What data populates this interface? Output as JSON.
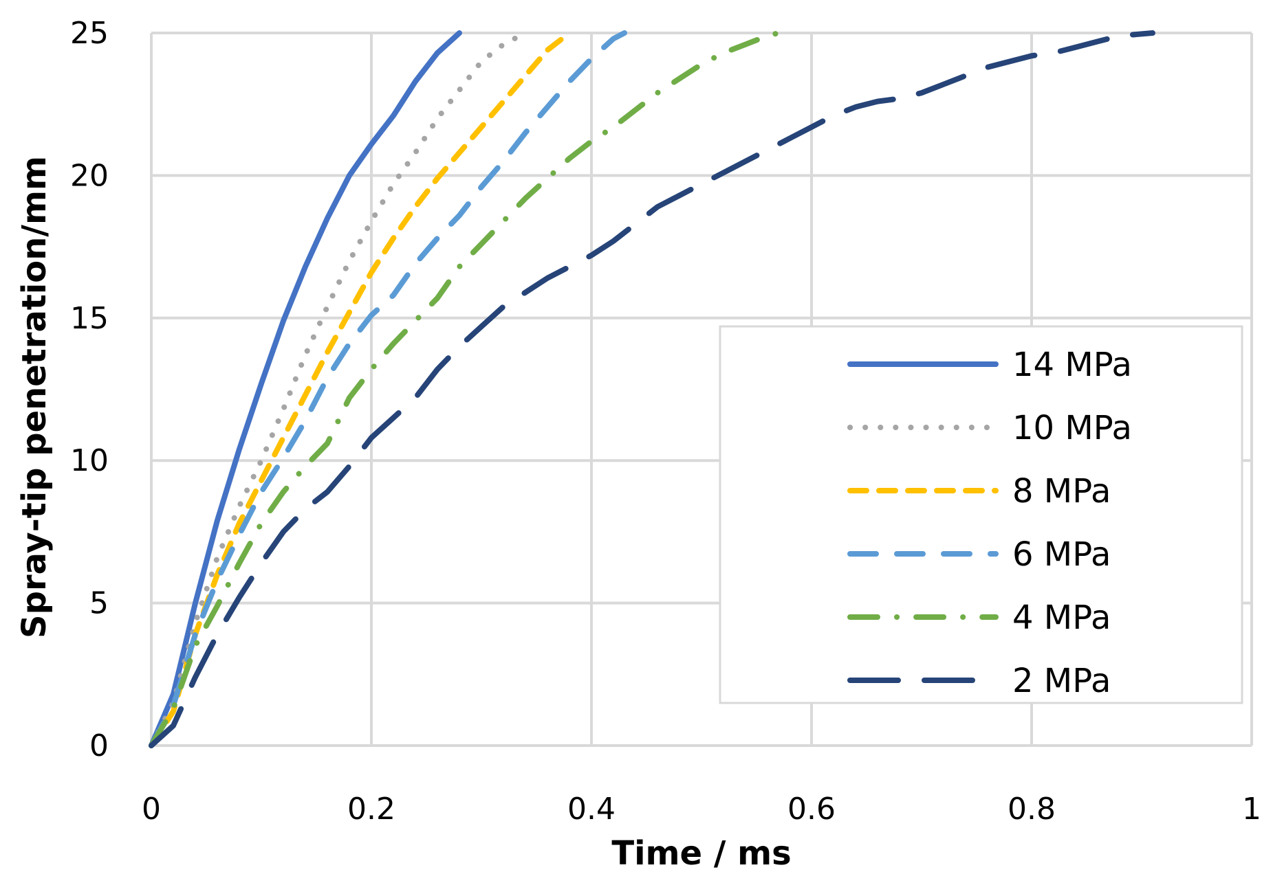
{
  "chart_data": {
    "type": "line",
    "title": "",
    "xlabel": "Time / ms",
    "ylabel": "Spray-tip penetration/mm",
    "xlim": [
      0,
      1
    ],
    "ylim": [
      0,
      25
    ],
    "grid": true,
    "legend_position": "right-middle",
    "x_ticks": [
      "0",
      "0.2",
      "0.4",
      "0.6",
      "0.8",
      "1"
    ],
    "y_ticks": [
      "0",
      "5",
      "10",
      "15",
      "20",
      "25"
    ],
    "series": [
      {
        "name": "14 MPa",
        "color": "#4472C4",
        "style": "solid",
        "x": [
          0,
          0.02,
          0.04,
          0.06,
          0.08,
          0.1,
          0.12,
          0.14,
          0.16,
          0.18,
          0.2,
          0.22,
          0.24,
          0.26,
          0.28
        ],
        "y": [
          0,
          1.8,
          5.0,
          7.9,
          10.4,
          12.7,
          14.9,
          16.8,
          18.5,
          20.0,
          21.1,
          22.1,
          23.3,
          24.3,
          25.0
        ]
      },
      {
        "name": "10 MPa",
        "color": "#A5A5A5",
        "style": "dotted",
        "x": [
          0,
          0.02,
          0.04,
          0.06,
          0.08,
          0.1,
          0.12,
          0.14,
          0.16,
          0.18,
          0.2,
          0.22,
          0.24,
          0.26,
          0.28,
          0.3,
          0.32,
          0.34
        ],
        "y": [
          0,
          1.5,
          4.3,
          6.6,
          8.4,
          10.0,
          11.8,
          13.7,
          15.4,
          17.0,
          18.4,
          19.7,
          20.8,
          22.0,
          23.0,
          24.0,
          24.6,
          25.0
        ]
      },
      {
        "name": "8 MPa",
        "color": "#FFC000",
        "style": "short-dash",
        "x": [
          0,
          0.02,
          0.04,
          0.06,
          0.08,
          0.1,
          0.12,
          0.14,
          0.16,
          0.18,
          0.2,
          0.22,
          0.24,
          0.26,
          0.28,
          0.3,
          0.32,
          0.34,
          0.36,
          0.38
        ],
        "y": [
          0,
          1.2,
          3.9,
          6.0,
          7.8,
          9.3,
          10.8,
          12.3,
          13.8,
          15.2,
          16.6,
          17.8,
          18.9,
          19.9,
          20.8,
          21.7,
          22.6,
          23.5,
          24.4,
          25.0
        ]
      },
      {
        "name": "6 MPa",
        "color": "#5B9BD5",
        "style": "dash",
        "x": [
          0,
          0.02,
          0.04,
          0.06,
          0.08,
          0.1,
          0.12,
          0.14,
          0.16,
          0.18,
          0.2,
          0.22,
          0.24,
          0.26,
          0.28,
          0.3,
          0.32,
          0.34,
          0.36,
          0.38,
          0.4,
          0.42,
          0.43
        ],
        "y": [
          0,
          1.4,
          3.9,
          5.8,
          7.4,
          8.9,
          10.1,
          11.4,
          12.9,
          14.1,
          15.1,
          15.8,
          16.9,
          17.8,
          18.6,
          19.6,
          20.5,
          21.5,
          22.4,
          23.3,
          24.1,
          24.8,
          25.0
        ]
      },
      {
        "name": "4 MPa",
        "color": "#70AD47",
        "style": "dash-dot",
        "x": [
          0,
          0.02,
          0.04,
          0.06,
          0.08,
          0.1,
          0.12,
          0.14,
          0.16,
          0.18,
          0.2,
          0.22,
          0.24,
          0.26,
          0.28,
          0.3,
          0.32,
          0.34,
          0.36,
          0.38,
          0.4,
          0.42,
          0.44,
          0.46,
          0.48,
          0.5,
          0.52,
          0.54,
          0.56,
          0.57
        ],
        "y": [
          0,
          1.3,
          3.5,
          4.9,
          6.4,
          7.8,
          8.9,
          9.8,
          10.6,
          12.2,
          13.2,
          14.1,
          14.9,
          15.7,
          16.8,
          17.6,
          18.4,
          19.2,
          19.9,
          20.6,
          21.2,
          21.7,
          22.3,
          22.9,
          23.4,
          23.9,
          24.3,
          24.6,
          24.9,
          25.0
        ]
      },
      {
        "name": "2 MPa",
        "color": "#264478",
        "style": "long-dash",
        "x": [
          0,
          0.02,
          0.04,
          0.06,
          0.08,
          0.1,
          0.12,
          0.14,
          0.16,
          0.18,
          0.2,
          0.22,
          0.24,
          0.26,
          0.28,
          0.3,
          0.32,
          0.34,
          0.36,
          0.38,
          0.4,
          0.42,
          0.44,
          0.46,
          0.48,
          0.5,
          0.52,
          0.54,
          0.56,
          0.58,
          0.6,
          0.62,
          0.64,
          0.66,
          0.68,
          0.7,
          0.72,
          0.74,
          0.76,
          0.78,
          0.8,
          0.82,
          0.84,
          0.86,
          0.88,
          0.91
        ],
        "y": [
          0,
          0.7,
          2.4,
          3.9,
          5.2,
          6.4,
          7.5,
          8.3,
          8.9,
          9.8,
          10.8,
          11.5,
          12.2,
          13.2,
          14.0,
          14.7,
          15.4,
          15.9,
          16.4,
          16.8,
          17.2,
          17.7,
          18.3,
          18.9,
          19.3,
          19.7,
          20.1,
          20.5,
          20.9,
          21.3,
          21.7,
          22.1,
          22.4,
          22.6,
          22.7,
          22.9,
          23.2,
          23.5,
          23.8,
          24.0,
          24.2,
          24.3,
          24.5,
          24.7,
          24.9,
          25.0
        ]
      }
    ]
  }
}
